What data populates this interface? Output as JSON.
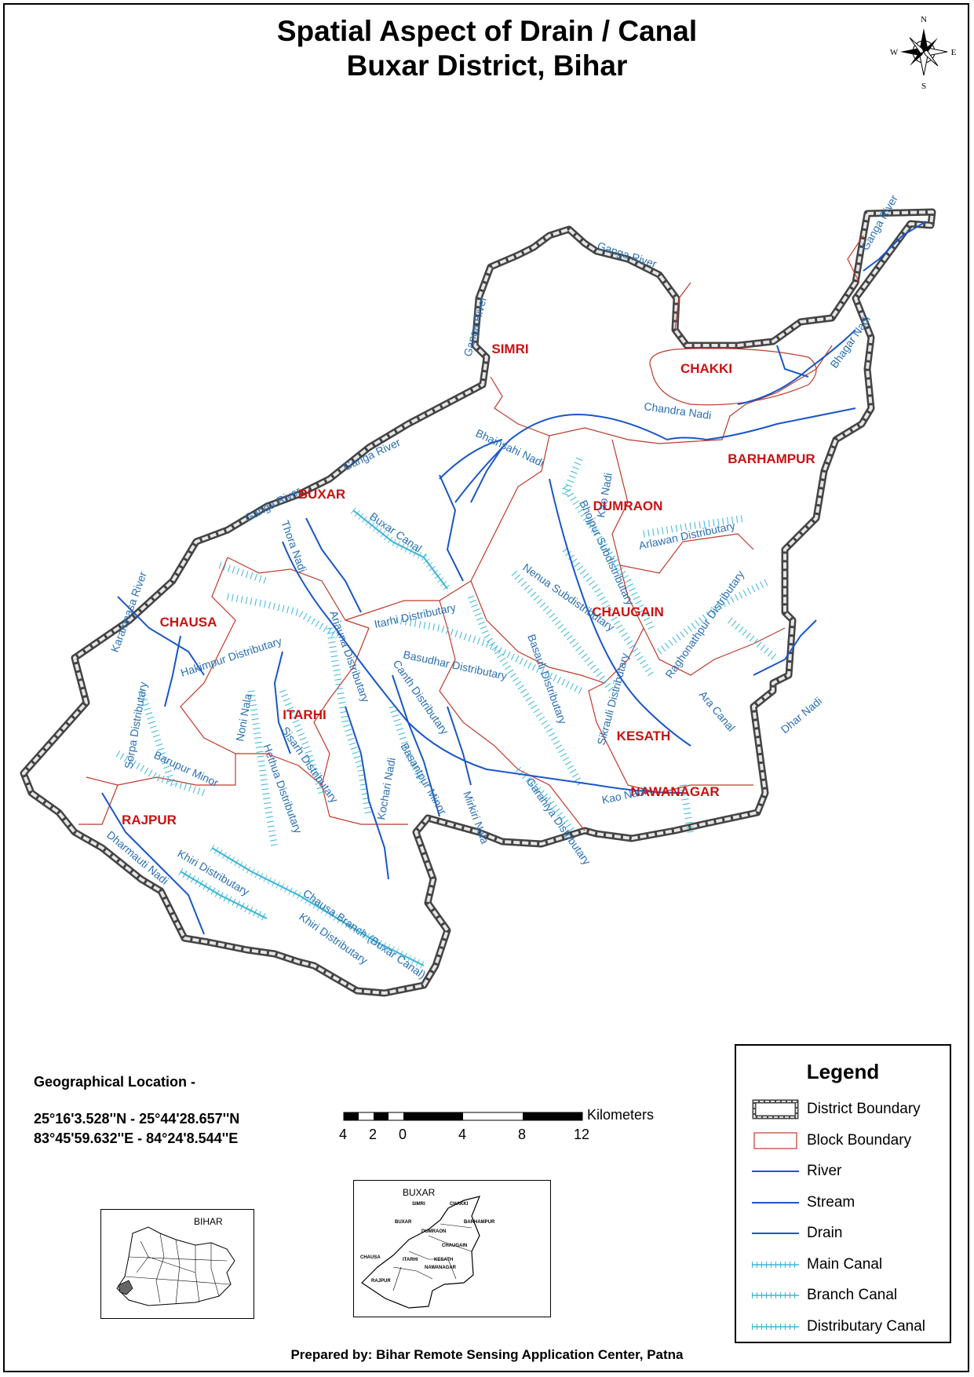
{
  "title": {
    "line1": "Spatial Aspect of Drain / Canal",
    "line2": "Buxar District, Bihar"
  },
  "north_arrow": {
    "n": "N",
    "s": "S",
    "e": "E",
    "w": "W"
  },
  "blocks": [
    "SIMRI",
    "CHAKKI",
    "BARHAMPUR",
    "DUMRAON",
    "BUXAR",
    "CHAUGAIN",
    "CHAUSA",
    "ITARHI",
    "KESATH",
    "NAWANAGAR",
    "RAJPUR"
  ],
  "features": {
    "ganga_river": "Ganga River",
    "bhagar_nadi": "Bhagar Nadi",
    "chandra_nadi": "Chandra Nadi",
    "bhainsahi_nadi": "Bhainsahi Nadi",
    "kao_nadi": "Kao Nadi",
    "thora_nadi": "Thora Nadi",
    "buxar_canal": "Buxar Canal",
    "karamnasa_river": "Karamnasa River",
    "hakimpur_distributary": "Hakimpur Distributary",
    "arjauna_distributary": "Arjauna Distributary",
    "itarhi_distributary": "Itarhi Distributary",
    "nenua_subdistributary": "Nenua Subdistributary",
    "bhojpur_subdistributary": "Bhojpur Subdistributary",
    "arlawan_distributary": "Arlawan Distributary",
    "raghonathpur_distributary": "Raghonathpur Distributary",
    "basudhar_distributary": "Basudhar Distributary",
    "basauli_distributary": "Basauli Distributary",
    "canth_distributary": "Canth Distributary",
    "sorpa_distributary": "Sorpa Distributary",
    "barupur_minor": "Barupur Minor",
    "noni_nala": "Noni Nala",
    "hethua_distributary": "Hethua Distributary",
    "sisarh_distributary": "Sisarh Distributary",
    "basantpur_minor": "Basantpur Minor",
    "mirkiri_nala": "Mirkiri Nala",
    "garahiya_distributary": "Garahiya Distributary",
    "sikrauli_distributary": "Sikrauli Distributary",
    "ara_canal": "Ara Canal",
    "dhar_nadi": "Dhar Nadi",
    "kochari_nadi": "Kochari Nadi",
    "dharmauti_nadi": "Dharmauti Nadi",
    "khiri_distributary": "Khiri Distributary",
    "chausa_branch": "Chausa Branch (Buxar Canal)"
  },
  "geo": {
    "heading": "Geographical Location -",
    "lat": "25°16'3.528''N  - 25°44'28.657''N",
    "lon": "83°45'59.632''E - 84°24'8.544''E"
  },
  "scale": {
    "unit": "Kilometers",
    "ticks": [
      "4",
      "2",
      "0",
      "4",
      "8",
      "12"
    ]
  },
  "legend": {
    "title": "Legend",
    "items": [
      {
        "label": "District Boundary",
        "symbol": "district"
      },
      {
        "label": "Block Boundary",
        "symbol": "block"
      },
      {
        "label": "River",
        "symbol": "line"
      },
      {
        "label": "Stream",
        "symbol": "line"
      },
      {
        "label": "Drain",
        "symbol": "line"
      },
      {
        "label": "Main Canal",
        "symbol": "canal"
      },
      {
        "label": "Branch Canal",
        "symbol": "canal"
      },
      {
        "label": "Distributary Canal",
        "symbol": "canal"
      }
    ]
  },
  "insets": {
    "bihar_label": "BIHAR",
    "buxar_label": "BUXAR",
    "buxar_blocks": [
      "SIMRI",
      "CHAKKI",
      "BARHAMPUR",
      "BUXAR",
      "DUMRAON",
      "CHAUGAIN",
      "CHAUSA",
      "ITARHI",
      "KESATH",
      "NAWANAGAR",
      "RAJPUR"
    ]
  },
  "colors": {
    "river": "#1a56c7",
    "canal": "#39b6d6",
    "block": "#c0392b",
    "label_blue": "#2a6fb5",
    "label_red": "#cc1111"
  },
  "footer": "Prepared by: Bihar Remote Sensing Application Center, Patna"
}
